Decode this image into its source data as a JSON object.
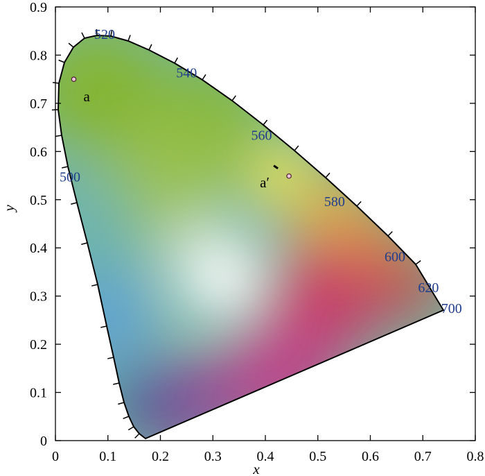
{
  "chart_data": {
    "type": "scatter",
    "title": "",
    "xlabel": "x",
    "ylabel": "y",
    "xlim": [
      0,
      0.8
    ],
    "ylim": [
      0,
      0.9
    ],
    "xticks": [
      "0",
      "0.1",
      "0.2",
      "0.3",
      "0.4",
      "0.5",
      "0.6",
      "0.7",
      "0.8"
    ],
    "yticks": [
      "0",
      "0.1",
      "0.2",
      "0.3",
      "0.4",
      "0.5",
      "0.6",
      "0.7",
      "0.8",
      "0.9"
    ],
    "grid": false,
    "wavelength_labels": [
      {
        "text": "520",
        "x": 0.074,
        "y": 0.834
      },
      {
        "text": "540",
        "x": 0.23,
        "y": 0.754
      },
      {
        "text": "560",
        "x": 0.373,
        "y": 0.624
      },
      {
        "text": "580",
        "x": 0.512,
        "y": 0.487
      },
      {
        "text": "600",
        "x": 0.627,
        "y": 0.372
      },
      {
        "text": "620",
        "x": 0.691,
        "y": 0.308
      },
      {
        "text": "700",
        "x": 0.735,
        "y": 0.265
      },
      {
        "text": "500",
        "x": 0.008,
        "y": 0.538
      }
    ],
    "points": [
      {
        "label": "a",
        "x": 0.035,
        "y": 0.75
      },
      {
        "label": "a′",
        "x": 0.445,
        "y": 0.549
      }
    ],
    "colors": {
      "wavelength_label": "#1f3d8c",
      "point_fill": "#f0c4dc",
      "boundary": "#000000"
    }
  }
}
